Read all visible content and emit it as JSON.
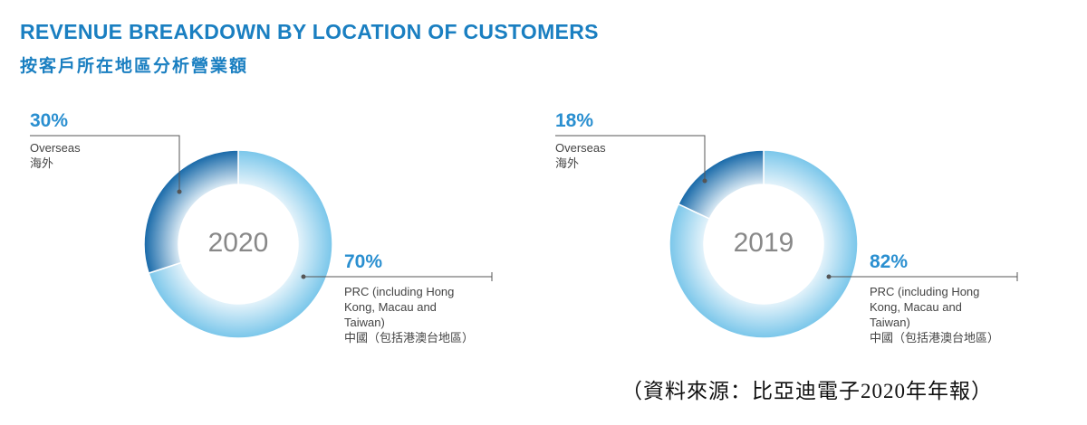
{
  "header": {
    "title": "REVENUE BREAKDOWN BY LOCATION OF CUSTOMERS",
    "subtitle": "按客戶所在地區分析營業額"
  },
  "chart_data": [
    {
      "type": "pie",
      "title": "2020",
      "donut": true,
      "categories": [
        "PRC (including Hong Kong, Macau and Taiwan)",
        "Overseas"
      ],
      "categories_zh": [
        "中國（包括港澳台地區）",
        "海外"
      ],
      "values": [
        70,
        30
      ],
      "value_labels": [
        "70%",
        "30%"
      ],
      "colors": [
        "#79c6ea",
        "#1668a8"
      ]
    },
    {
      "type": "pie",
      "title": "2019",
      "donut": true,
      "categories": [
        "PRC (including Hong Kong, Macau and Taiwan)",
        "Overseas"
      ],
      "categories_zh": [
        "中國（包括港澳台地區）",
        "海外"
      ],
      "values": [
        82,
        18
      ],
      "value_labels": [
        "82%",
        "18%"
      ],
      "colors": [
        "#79c6ea",
        "#1668a8"
      ]
    }
  ],
  "source": "（資料來源：比亞迪電子2020年年報）"
}
